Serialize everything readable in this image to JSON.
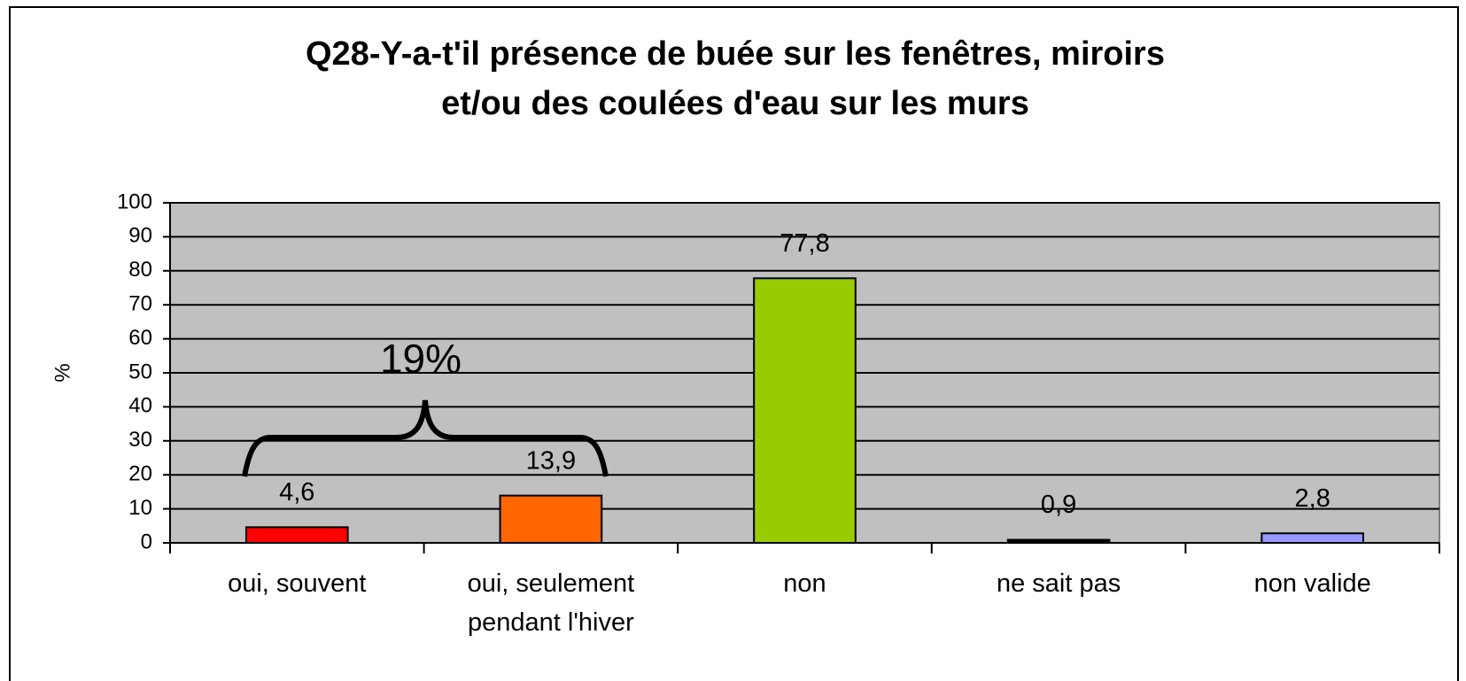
{
  "chart_data": {
    "type": "bar",
    "title": [
      "Q28-Y-a-t'il présence de buée sur les fenêtres, miroirs",
      "et/ou des coulées d'eau sur les murs"
    ],
    "y_label": "%",
    "categories": [
      "oui, souvent",
      "oui,  seulement\npendant l'hiver",
      "non",
      "ne sait pas",
      "non valide"
    ],
    "values": [
      4.6,
      13.9,
      77.8,
      0.9,
      2.8
    ],
    "value_labels": [
      "4,6",
      "13,9",
      "77,8",
      "0,9",
      "2,8"
    ],
    "colors": [
      "#ff0000",
      "#ff6600",
      "#99cc00",
      "#000000",
      "#9999ff"
    ],
    "ylim": [
      0,
      100
    ],
    "yticks": [
      0,
      10,
      20,
      30,
      40,
      50,
      60,
      70,
      80,
      90,
      100
    ],
    "grid": true,
    "plot_background": "#c0c0c0",
    "annotation": "19%"
  }
}
